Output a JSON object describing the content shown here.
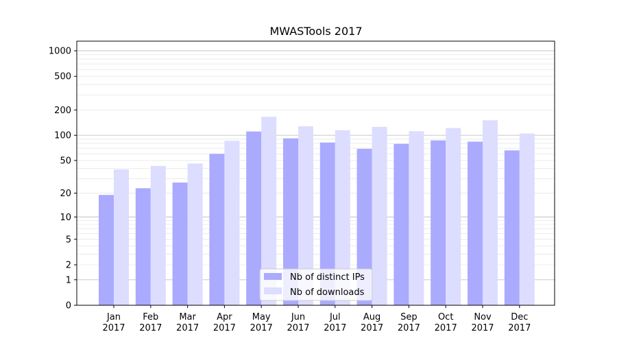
{
  "chart_data": {
    "type": "bar",
    "title": "MWASTools 2017",
    "xlabel": "",
    "ylabel": "",
    "categories": [
      [
        "Jan",
        "2017"
      ],
      [
        "Feb",
        "2017"
      ],
      [
        "Mar",
        "2017"
      ],
      [
        "Apr",
        "2017"
      ],
      [
        "May",
        "2017"
      ],
      [
        "Jun",
        "2017"
      ],
      [
        "Jul",
        "2017"
      ],
      [
        "Aug",
        "2017"
      ],
      [
        "Sep",
        "2017"
      ],
      [
        "Oct",
        "2017"
      ],
      [
        "Nov",
        "2017"
      ],
      [
        "Dec",
        "2017"
      ]
    ],
    "series": [
      {
        "name": "Nb of distinct IPs",
        "color": "#aaaaff",
        "values": [
          19,
          23,
          27,
          60,
          111,
          92,
          82,
          69,
          79,
          87,
          84,
          66
        ]
      },
      {
        "name": "Nb of downloads",
        "color": "#ddddff",
        "values": [
          39,
          43,
          46,
          86,
          166,
          128,
          115,
          126,
          112,
          122,
          151,
          105
        ]
      }
    ],
    "yscale": "log(1+y)",
    "ylim": [
      0,
      1300
    ],
    "yticks": [
      0,
      1,
      2,
      5,
      10,
      20,
      50,
      100,
      200,
      500,
      1000
    ],
    "ytick_labels": [
      "0",
      "1",
      "2",
      "5",
      "10",
      "20",
      "50",
      "100",
      "200",
      "500",
      "1000"
    ],
    "grid": true,
    "legend_position": "lower-center"
  }
}
